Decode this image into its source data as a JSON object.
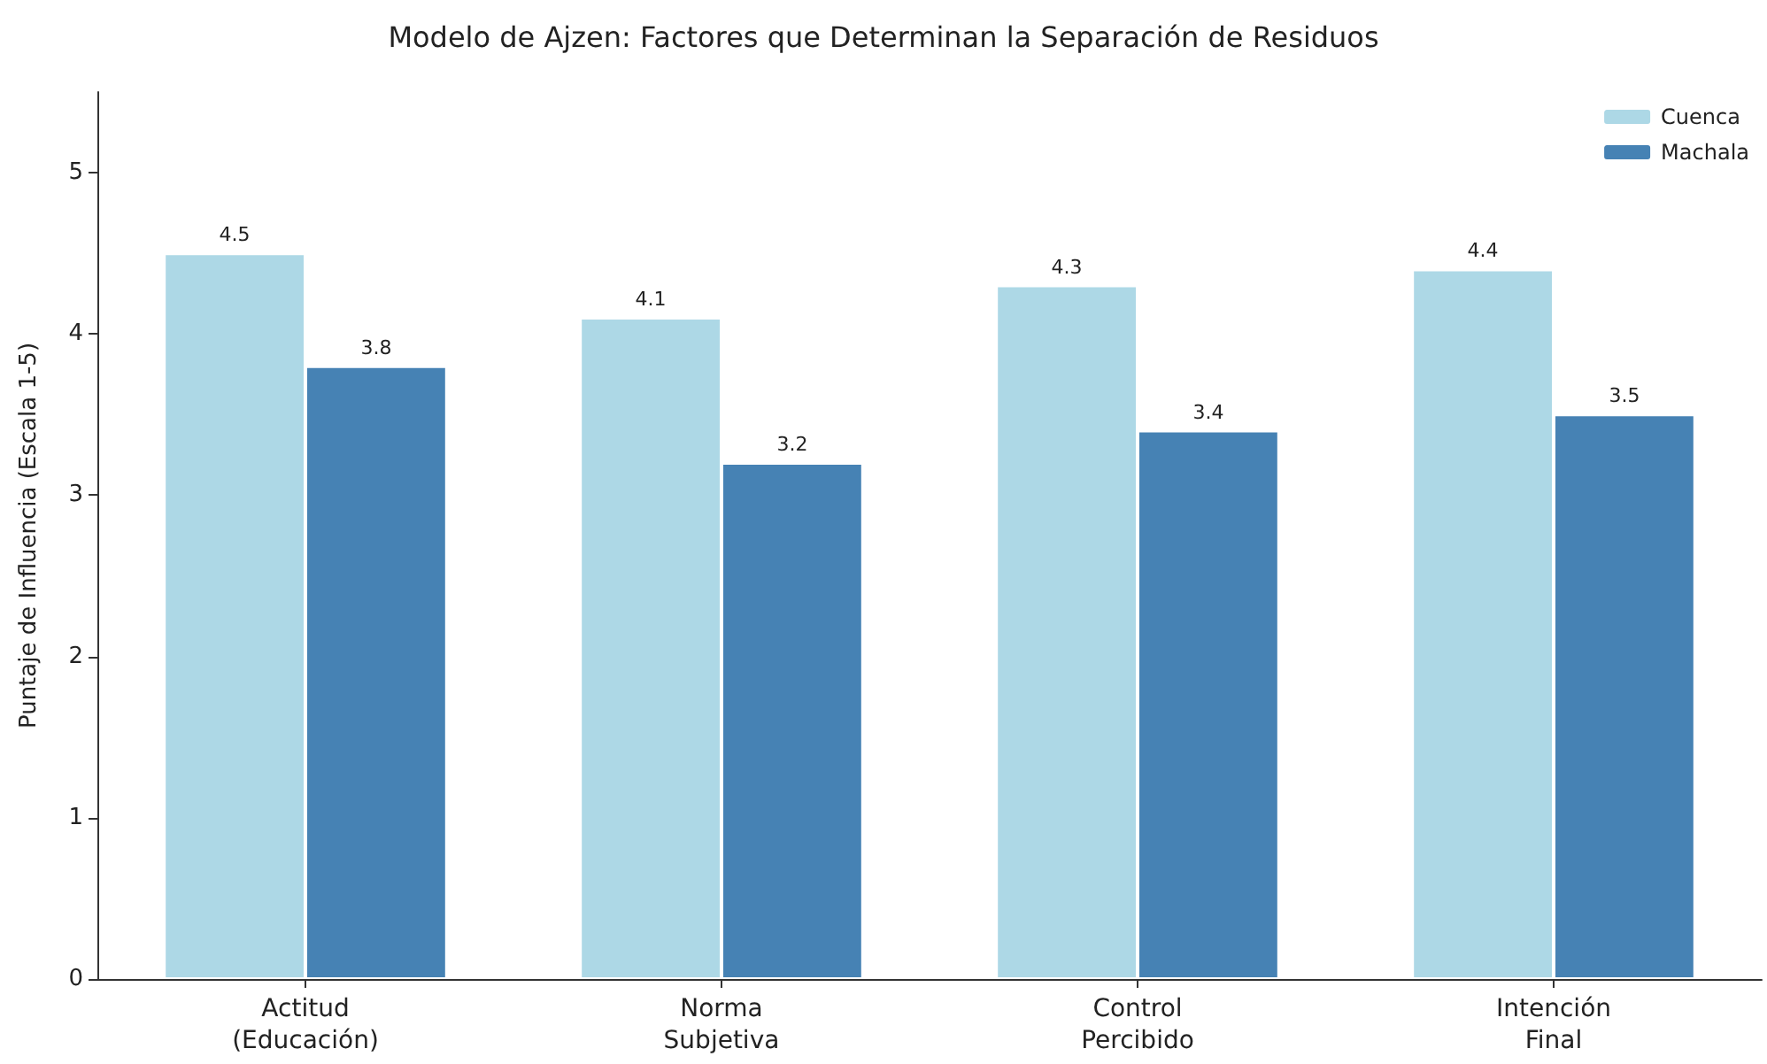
{
  "chart_data": {
    "type": "bar",
    "title": "Modelo de Ajzen: Factores que Determinan la Separación de Residuos",
    "ylabel": "Puntaje de Influencia (Escala 1-5)",
    "categories": [
      "Actitud\n(Educación)",
      "Norma\nSubjetiva",
      "Control\nPercibido",
      "Intención\nFinal"
    ],
    "series": [
      {
        "name": "Cuenca",
        "color": "#add8e6",
        "values": [
          4.5,
          4.1,
          4.3,
          4.4
        ]
      },
      {
        "name": "Machala",
        "color": "#4682b4",
        "values": [
          3.8,
          3.2,
          3.4,
          3.5
        ]
      }
    ],
    "ylim": [
      0,
      5.5
    ],
    "yticks": [
      0,
      1,
      2,
      3,
      4,
      5
    ],
    "grid": false,
    "legend": "top right",
    "data_labels": true
  }
}
